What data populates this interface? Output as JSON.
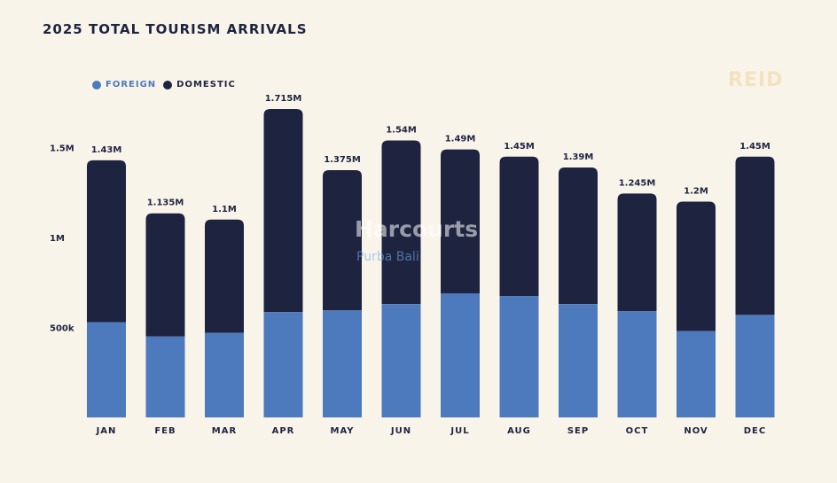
{
  "title": "2025 TOTAL TOURISM ARRIVALS",
  "brand": "REID",
  "watermark": {
    "main": "Harcourts",
    "sub": "Purba Bali"
  },
  "legend": {
    "foreign": "FOREIGN",
    "domestic": "DOMESTIC"
  },
  "colors": {
    "foreign": "#4d7abd",
    "domestic": "#1e2340",
    "background": "#f9f4ea"
  },
  "chart_data": {
    "type": "bar",
    "stacked": true,
    "title": "2025 TOTAL TOURISM ARRIVALS",
    "categories": [
      "JAN",
      "FEB",
      "MAR",
      "APR",
      "MAY",
      "JUN",
      "JUL",
      "AUG",
      "SEP",
      "OCT",
      "NOV",
      "DEC"
    ],
    "series": [
      {
        "name": "FOREIGN",
        "values": [
          530000,
          450000,
          470000,
          585000,
          595000,
          630000,
          690000,
          675000,
          630000,
          590000,
          480000,
          570000
        ]
      },
      {
        "name": "DOMESTIC",
        "values": [
          900000,
          685000,
          630000,
          1130000,
          780000,
          910000,
          800000,
          775000,
          760000,
          655000,
          720000,
          880000
        ]
      }
    ],
    "totals": [
      1430000,
      1135000,
      1100000,
      1715000,
      1375000,
      1540000,
      1490000,
      1450000,
      1390000,
      1245000,
      1200000,
      1450000
    ],
    "total_labels": [
      "1.43M",
      "1.135M",
      "1.1M",
      "1.715M",
      "1.375M",
      "1.54M",
      "1.49M",
      "1.45M",
      "1.39M",
      "1.245M",
      "1.2M",
      "1.45M"
    ],
    "yticks": [
      {
        "value": 500000,
        "label": "500k"
      },
      {
        "value": 1000000,
        "label": "1M"
      },
      {
        "value": 1500000,
        "label": "1.5M"
      }
    ],
    "ylim": [
      0,
      1715000
    ],
    "grid": false,
    "legend_position": "top-left"
  }
}
